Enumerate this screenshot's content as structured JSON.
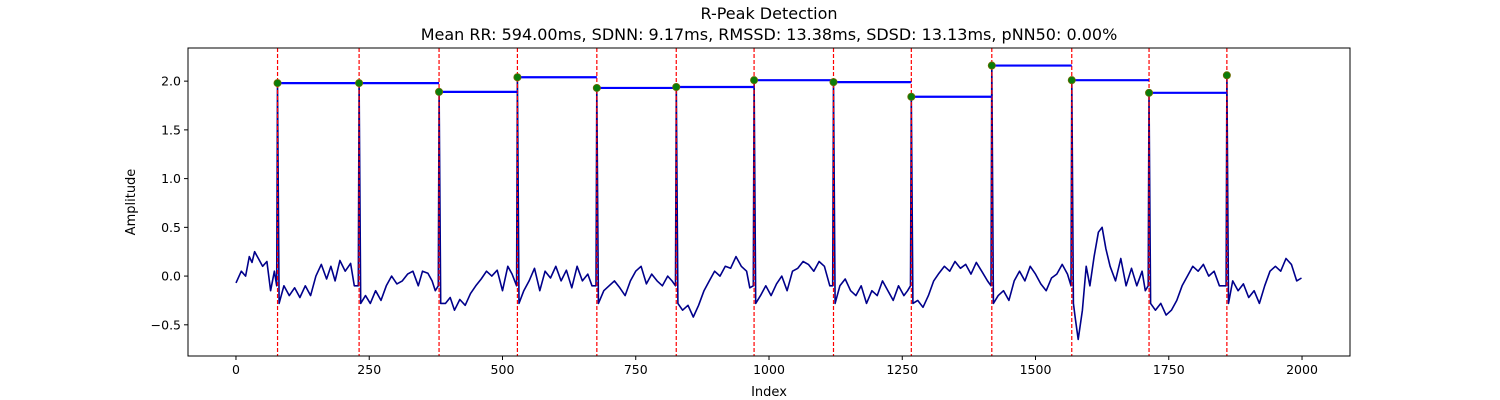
{
  "chart_data": {
    "type": "line",
    "title": "R-Peak Detection",
    "subtitle": "Mean RR: 594.00ms, SDNN: 9.17ms, RMSSD: 13.38ms, SDSD: 13.13ms, pNN50: 0.00%",
    "xlabel": "Index",
    "ylabel": "Amplitude",
    "xlim": [
      -90,
      2090
    ],
    "ylim": [
      -0.82,
      2.34
    ],
    "x_ticks": [
      0,
      250,
      500,
      750,
      1000,
      1250,
      1500,
      1750,
      2000
    ],
    "y_ticks": [
      -0.5,
      0.0,
      0.5,
      1.0,
      1.5,
      2.0
    ],
    "grid": false,
    "colors": {
      "signal": "#00008b",
      "peak_marker": "#0a7d0a",
      "peak_marker_edge": "#6b6b00",
      "peak_line": "#ff0000",
      "rr_interval": "#0000ff"
    },
    "signal_length": 2000,
    "r_peaks": [
      {
        "x": 78,
        "y": 1.98
      },
      {
        "x": 231,
        "y": 1.98
      },
      {
        "x": 381,
        "y": 1.89
      },
      {
        "x": 528,
        "y": 2.04
      },
      {
        "x": 677,
        "y": 1.93
      },
      {
        "x": 826,
        "y": 1.94
      },
      {
        "x": 972,
        "y": 2.01
      },
      {
        "x": 1121,
        "y": 1.99
      },
      {
        "x": 1267,
        "y": 1.84
      },
      {
        "x": 1418,
        "y": 2.16
      },
      {
        "x": 1568,
        "y": 2.01
      },
      {
        "x": 1713,
        "y": 1.88
      },
      {
        "x": 1859,
        "y": 2.06
      }
    ],
    "signal_points": [
      [
        0,
        -0.07
      ],
      [
        10,
        0.05
      ],
      [
        18,
        0.0
      ],
      [
        25,
        0.2
      ],
      [
        30,
        0.14
      ],
      [
        35,
        0.25
      ],
      [
        42,
        0.18
      ],
      [
        50,
        0.1
      ],
      [
        58,
        0.15
      ],
      [
        65,
        -0.15
      ],
      [
        72,
        0.05
      ],
      [
        90,
        -0.1
      ],
      [
        100,
        -0.2
      ],
      [
        110,
        -0.12
      ],
      [
        120,
        -0.22
      ],
      [
        130,
        -0.1
      ],
      [
        140,
        -0.2
      ],
      [
        150,
        0.0
      ],
      [
        160,
        0.12
      ],
      [
        170,
        -0.03
      ],
      [
        178,
        0.1
      ],
      [
        186,
        -0.05
      ],
      [
        195,
        0.16
      ],
      [
        205,
        0.05
      ],
      [
        215,
        0.13
      ],
      [
        222,
        -0.1
      ],
      [
        243,
        -0.2
      ],
      [
        252,
        -0.28
      ],
      [
        262,
        -0.15
      ],
      [
        272,
        -0.25
      ],
      [
        282,
        -0.1
      ],
      [
        292,
        0.0
      ],
      [
        302,
        -0.08
      ],
      [
        312,
        -0.05
      ],
      [
        322,
        0.02
      ],
      [
        332,
        0.05
      ],
      [
        342,
        -0.1
      ],
      [
        350,
        0.05
      ],
      [
        360,
        0.03
      ],
      [
        368,
        -0.05
      ],
      [
        374,
        -0.15
      ],
      [
        393,
        -0.28
      ],
      [
        402,
        -0.22
      ],
      [
        410,
        -0.35
      ],
      [
        420,
        -0.24
      ],
      [
        430,
        -0.3
      ],
      [
        440,
        -0.18
      ],
      [
        450,
        -0.1
      ],
      [
        460,
        -0.03
      ],
      [
        470,
        0.05
      ],
      [
        480,
        0.0
      ],
      [
        490,
        0.06
      ],
      [
        500,
        -0.15
      ],
      [
        510,
        0.1
      ],
      [
        518,
        0.02
      ],
      [
        540,
        -0.15
      ],
      [
        550,
        -0.05
      ],
      [
        560,
        0.08
      ],
      [
        570,
        -0.15
      ],
      [
        580,
        0.05
      ],
      [
        590,
        -0.02
      ],
      [
        600,
        0.1
      ],
      [
        610,
        -0.05
      ],
      [
        620,
        0.06
      ],
      [
        630,
        -0.12
      ],
      [
        640,
        0.1
      ],
      [
        650,
        -0.05
      ],
      [
        660,
        0.02
      ],
      [
        668,
        -0.1
      ],
      [
        690,
        -0.15
      ],
      [
        700,
        -0.1
      ],
      [
        710,
        -0.05
      ],
      [
        720,
        -0.12
      ],
      [
        730,
        -0.2
      ],
      [
        740,
        -0.05
      ],
      [
        750,
        0.05
      ],
      [
        760,
        0.1
      ],
      [
        770,
        -0.08
      ],
      [
        780,
        0.02
      ],
      [
        790,
        -0.05
      ],
      [
        800,
        -0.1
      ],
      [
        810,
        0.0
      ],
      [
        818,
        -0.05
      ],
      [
        838,
        -0.35
      ],
      [
        848,
        -0.3
      ],
      [
        858,
        -0.42
      ],
      [
        868,
        -0.3
      ],
      [
        878,
        -0.15
      ],
      [
        888,
        -0.05
      ],
      [
        898,
        0.05
      ],
      [
        908,
        0.0
      ],
      [
        918,
        0.1
      ],
      [
        928,
        0.08
      ],
      [
        938,
        0.2
      ],
      [
        948,
        0.1
      ],
      [
        958,
        0.05
      ],
      [
        964,
        -0.12
      ],
      [
        984,
        -0.2
      ],
      [
        994,
        -0.1
      ],
      [
        1004,
        -0.2
      ],
      [
        1014,
        -0.08
      ],
      [
        1024,
        0.0
      ],
      [
        1034,
        -0.15
      ],
      [
        1044,
        0.05
      ],
      [
        1054,
        0.08
      ],
      [
        1064,
        0.15
      ],
      [
        1074,
        0.12
      ],
      [
        1084,
        0.05
      ],
      [
        1094,
        0.15
      ],
      [
        1104,
        0.1
      ],
      [
        1114,
        -0.1
      ],
      [
        1133,
        -0.1
      ],
      [
        1143,
        -0.03
      ],
      [
        1153,
        -0.15
      ],
      [
        1163,
        -0.2
      ],
      [
        1173,
        -0.1
      ],
      [
        1183,
        -0.28
      ],
      [
        1193,
        -0.15
      ],
      [
        1203,
        -0.2
      ],
      [
        1213,
        -0.05
      ],
      [
        1223,
        -0.15
      ],
      [
        1233,
        -0.25
      ],
      [
        1243,
        -0.1
      ],
      [
        1253,
        -0.2
      ],
      [
        1260,
        -0.15
      ],
      [
        1279,
        -0.25
      ],
      [
        1289,
        -0.32
      ],
      [
        1299,
        -0.2
      ],
      [
        1309,
        -0.05
      ],
      [
        1319,
        0.03
      ],
      [
        1329,
        0.1
      ],
      [
        1339,
        0.05
      ],
      [
        1349,
        0.15
      ],
      [
        1359,
        0.08
      ],
      [
        1369,
        0.12
      ],
      [
        1379,
        0.02
      ],
      [
        1389,
        0.14
      ],
      [
        1399,
        0.05
      ],
      [
        1410,
        -0.05
      ],
      [
        1430,
        -0.2
      ],
      [
        1440,
        -0.15
      ],
      [
        1450,
        -0.25
      ],
      [
        1460,
        -0.05
      ],
      [
        1470,
        0.05
      ],
      [
        1480,
        -0.05
      ],
      [
        1490,
        0.1
      ],
      [
        1500,
        0.02
      ],
      [
        1510,
        -0.08
      ],
      [
        1520,
        -0.15
      ],
      [
        1530,
        -0.02
      ],
      [
        1540,
        0.02
      ],
      [
        1550,
        0.12
      ],
      [
        1560,
        0.02
      ],
      [
        1575,
        -0.45
      ],
      [
        1580,
        -0.65
      ],
      [
        1588,
        -0.35
      ],
      [
        1595,
        0.1
      ],
      [
        1602,
        -0.1
      ],
      [
        1610,
        0.2
      ],
      [
        1618,
        0.45
      ],
      [
        1625,
        0.5
      ],
      [
        1632,
        0.28
      ],
      [
        1640,
        0.1
      ],
      [
        1650,
        -0.05
      ],
      [
        1660,
        0.18
      ],
      [
        1670,
        -0.1
      ],
      [
        1680,
        0.08
      ],
      [
        1690,
        -0.1
      ],
      [
        1700,
        0.05
      ],
      [
        1706,
        -0.15
      ],
      [
        1725,
        -0.35
      ],
      [
        1735,
        -0.28
      ],
      [
        1745,
        -0.4
      ],
      [
        1755,
        -0.35
      ],
      [
        1765,
        -0.25
      ],
      [
        1775,
        -0.1
      ],
      [
        1785,
        0.0
      ],
      [
        1795,
        0.1
      ],
      [
        1805,
        0.05
      ],
      [
        1815,
        0.12
      ],
      [
        1825,
        0.0
      ],
      [
        1835,
        0.05
      ],
      [
        1845,
        -0.1
      ],
      [
        1852,
        -0.1
      ],
      [
        1870,
        -0.05
      ],
      [
        1880,
        -0.15
      ],
      [
        1890,
        -0.08
      ],
      [
        1900,
        -0.22
      ],
      [
        1910,
        -0.15
      ],
      [
        1920,
        -0.28
      ],
      [
        1930,
        -0.1
      ],
      [
        1940,
        0.05
      ],
      [
        1950,
        0.1
      ],
      [
        1960,
        0.05
      ],
      [
        1970,
        0.18
      ],
      [
        1980,
        0.12
      ],
      [
        1990,
        -0.05
      ],
      [
        1999,
        -0.02
      ]
    ]
  }
}
